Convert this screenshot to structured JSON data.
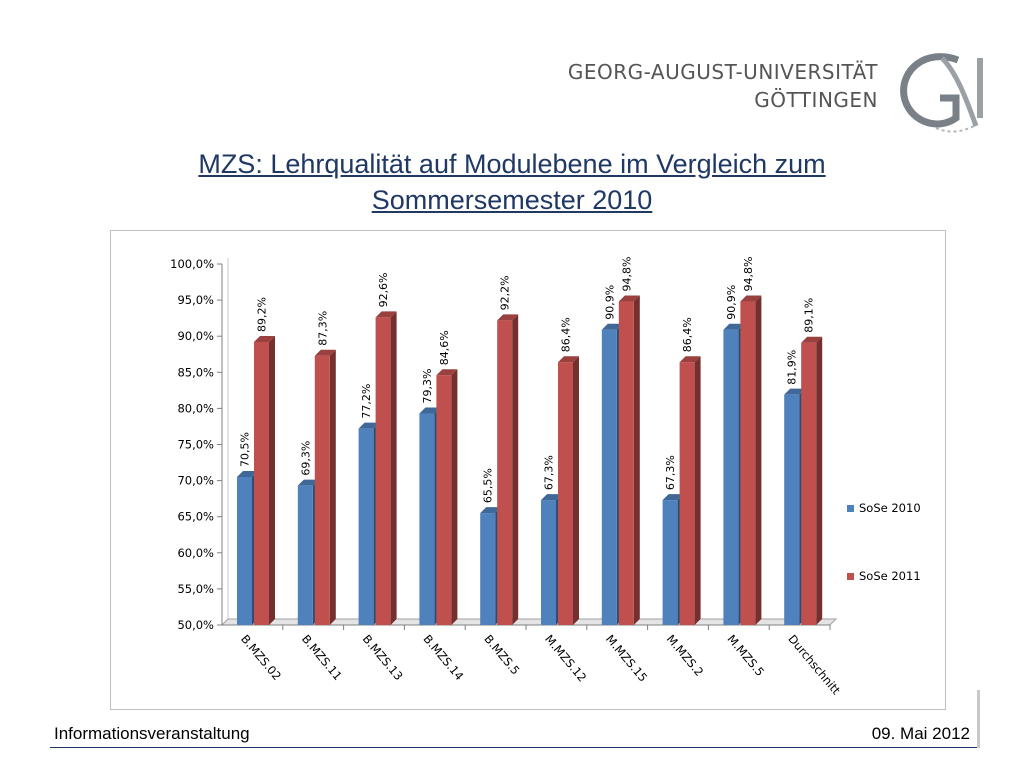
{
  "header": {
    "university_line1": "GEORG-AUGUST-UNIVERSITÄT",
    "university_line2": "GÖTTINGEN",
    "logo_icon": "goettingen-university-seal-icon"
  },
  "slide": {
    "title_line1": "MZS: Lehrqualität auf Modulebene im Vergleich zum",
    "title_line2": "Sommersemester 2010"
  },
  "chart_data": {
    "type": "bar",
    "categories": [
      "B.MZS.02",
      "B.MZS.11",
      "B.MZS.13",
      "B.MZS.14",
      "B.MZS.5",
      "M.MZS.12",
      "M.MZS.15",
      "M.MZS.2",
      "M.MZS.5",
      "Durchschnitt"
    ],
    "series": [
      {
        "name": "SoSe 2010",
        "values": [
          70.5,
          69.3,
          77.2,
          79.3,
          65.5,
          67.3,
          90.9,
          67.3,
          90.9,
          81.9
        ],
        "labels": [
          "70,5%",
          "69,3%",
          "77,2%",
          "79,3%",
          "65,5%",
          "67,3%",
          "90,9%",
          "67,3%",
          "90,9%",
          "81,9%"
        ],
        "color": "#4f81bd"
      },
      {
        "name": "SoSe 2011",
        "values": [
          89.2,
          87.3,
          92.6,
          84.6,
          92.2,
          86.4,
          94.8,
          86.4,
          94.8,
          89.1
        ],
        "labels": [
          "89,2%",
          "87,3%",
          "92,6%",
          "84,6%",
          "92,2%",
          "86,4%",
          "94,8%",
          "86,4%",
          "94,8%",
          "89,1%"
        ],
        "color": "#c0504d"
      }
    ],
    "yticks": [
      "50,0%",
      "55,0%",
      "60,0%",
      "65,0%",
      "70,0%",
      "75,0%",
      "80,0%",
      "85,0%",
      "90,0%",
      "95,0%",
      "100,0%"
    ],
    "ylim": [
      50,
      100
    ],
    "legend_position": "right",
    "grid": false
  },
  "footer": {
    "left": "Informationsveranstaltung",
    "right": "09. Mai 2012"
  }
}
